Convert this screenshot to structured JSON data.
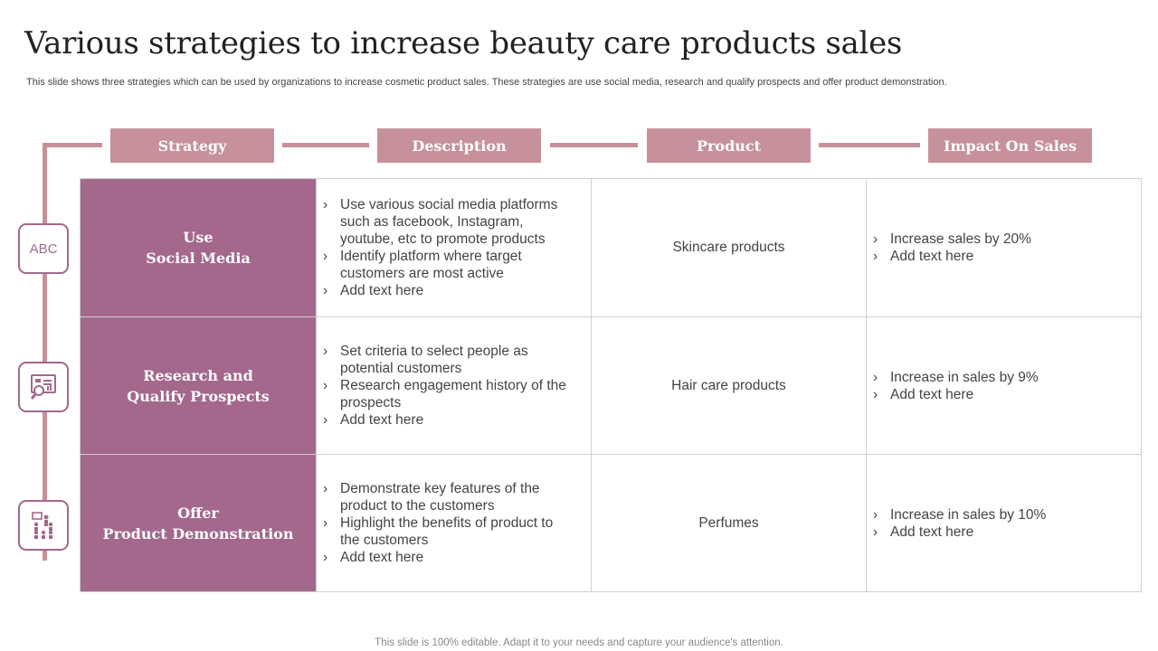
{
  "title": "Various strategies to increase beauty care products sales",
  "subtitle": "This slide shows three strategies which can be used by organizations to increase cosmetic product sales. These strategies are use social media, research and qualify prospects and offer product demonstration.",
  "headers": [
    "Strategy",
    "Description",
    "Product",
    "Impact On Sales"
  ],
  "icons": [
    {
      "name": "abc-icon",
      "label": "ABC"
    },
    {
      "name": "presentation-search-icon"
    },
    {
      "name": "demonstration-audience-icon"
    }
  ],
  "rows": [
    {
      "strategy": [
        "Use",
        "Social Media"
      ],
      "description": [
        "Use various social media platforms such as facebook, Instagram, youtube,  etc to promote products",
        "Identify platform where target customers are most active",
        "Add text here"
      ],
      "product": "Skincare products",
      "impact": [
        "Increase  sales by 20%",
        "Add text here"
      ]
    },
    {
      "strategy": [
        "Research and",
        "Qualify Prospects"
      ],
      "description": [
        "Set criteria to select people as potential customers",
        "Research engagement history of the prospects",
        "Add text here"
      ],
      "product": "Hair care products",
      "impact": [
        "Increase  in sales by 9%",
        "Add text here"
      ]
    },
    {
      "strategy": [
        "Offer",
        "Product Demonstration"
      ],
      "description": [
        "Demonstrate key features of the product to the customers",
        "Highlight the benefits of product to the customers",
        "Add text here"
      ],
      "product": "Perfumes",
      "impact": [
        "Increase  in sales by 10%",
        "Add text here"
      ]
    }
  ],
  "footer": "This slide is 100% editable. Adapt it to your needs and capture your audience's attention.",
  "colors": {
    "accent_pink": "#c6919a",
    "accent_purple": "#a3688c"
  }
}
